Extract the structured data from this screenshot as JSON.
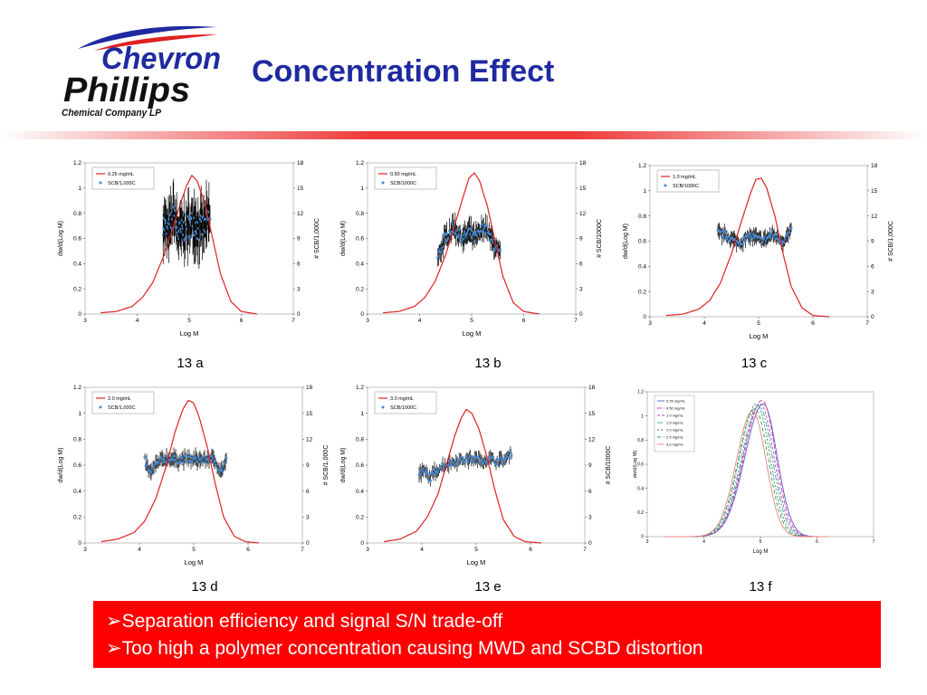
{
  "slide": {
    "title": "Concentration Effect",
    "logo": {
      "line1": "Chevron",
      "line2": "Phillips",
      "line3": "Chemical Company LP"
    },
    "notes": [
      "➢Separation efficiency and signal S/N trade-off",
      "➢Too high a polymer concentration causing MWD and SCBD distortion"
    ],
    "colors": {
      "title": "#1f2aa0",
      "notes_background": "#ff0000",
      "notes_text": "#ffffff",
      "mwd_curve": "#e02020",
      "scb_points": "#4a86c8",
      "error_bars": "#000000"
    }
  },
  "chart_data": [
    {
      "panel_label": "13 a",
      "type": "line",
      "xlabel": "Log M",
      "ylabel": "dw/d(Log M)",
      "y2label": "# SCB/1,000C",
      "xlim": [
        3,
        7
      ],
      "ylim": [
        0,
        1.2
      ],
      "y2lim": [
        0,
        18
      ],
      "xticks": [
        3,
        4,
        5,
        6,
        7
      ],
      "yticks": [
        0,
        0.2,
        0.4,
        0.6,
        0.8,
        1,
        1.2
      ],
      "y2ticks": [
        0,
        3,
        6,
        9,
        12,
        15,
        18
      ],
      "legend": {
        "position": "top-left",
        "entries": [
          "0.25 mg/mL",
          "SCB/1,000C"
        ]
      },
      "series": [
        {
          "name": "0.25 mg/mL",
          "kind": "line",
          "x": [
            3.3,
            3.6,
            3.9,
            4.1,
            4.3,
            4.5,
            4.7,
            4.85,
            4.95,
            5.05,
            5.15,
            5.3,
            5.45,
            5.6,
            5.8,
            6.0,
            6.3
          ],
          "y": [
            0.01,
            0.02,
            0.06,
            0.13,
            0.25,
            0.45,
            0.7,
            0.9,
            1.02,
            1.1,
            1.06,
            0.88,
            0.6,
            0.32,
            0.1,
            0.02,
            0.0
          ]
        },
        {
          "name": "SCB/1,000C",
          "kind": "points",
          "axis": "y2",
          "x": [
            4.5,
            4.6,
            4.7,
            4.8,
            4.9,
            5.0,
            5.1,
            5.2,
            5.3,
            5.4
          ],
          "y": [
            11,
            9.5,
            12,
            9.5,
            10,
            10.5,
            11,
            10,
            10.5,
            11.5
          ],
          "error": 3.5
        }
      ]
    },
    {
      "panel_label": "13 b",
      "type": "line",
      "xlabel": "Log M",
      "ylabel": "dw/d(Log M)",
      "y2label": "# SCB/1000C",
      "xlim": [
        3,
        7
      ],
      "ylim": [
        0,
        1.2
      ],
      "y2lim": [
        0,
        18
      ],
      "xticks": [
        3,
        4,
        5,
        6,
        7
      ],
      "yticks": [
        0,
        0.2,
        0.4,
        0.6,
        0.8,
        1,
        1.2
      ],
      "y2ticks": [
        0,
        3,
        6,
        9,
        12,
        15,
        18
      ],
      "legend": {
        "position": "top-left",
        "entries": [
          "0.50 mg/mL",
          "SCB/1000C"
        ]
      },
      "series": [
        {
          "name": "0.50 mg/mL",
          "kind": "line",
          "x": [
            3.3,
            3.6,
            3.9,
            4.1,
            4.3,
            4.5,
            4.7,
            4.85,
            4.95,
            5.05,
            5.15,
            5.3,
            5.45,
            5.6,
            5.8,
            6.0,
            6.3
          ],
          "y": [
            0.01,
            0.02,
            0.06,
            0.13,
            0.26,
            0.47,
            0.74,
            0.95,
            1.08,
            1.12,
            1.06,
            0.86,
            0.58,
            0.3,
            0.09,
            0.02,
            0.0
          ]
        },
        {
          "name": "SCB/1000C",
          "kind": "points",
          "axis": "y2",
          "x": [
            4.35,
            4.45,
            4.55,
            4.65,
            4.75,
            4.85,
            4.95,
            5.05,
            5.15,
            5.25,
            5.35,
            5.45,
            5.55
          ],
          "y": [
            6.5,
            8.5,
            9.5,
            10.5,
            9.5,
            9.0,
            9.8,
            9.0,
            9.5,
            10.5,
            9.2,
            8.0,
            7.0
          ],
          "error": 1.5
        }
      ]
    },
    {
      "panel_label": "13 c",
      "type": "line",
      "xlabel": "Log M",
      "ylabel": "dw/d(Log M)",
      "y2label": "# SCB/1,000C",
      "xlim": [
        3,
        7
      ],
      "ylim": [
        0,
        1.2
      ],
      "y2lim": [
        0,
        18
      ],
      "xticks": [
        3,
        4,
        5,
        6,
        7
      ],
      "yticks": [
        0,
        0.2,
        0.4,
        0.6,
        0.8,
        1,
        1.2
      ],
      "y2ticks": [
        0,
        3,
        6,
        9,
        12,
        15,
        18
      ],
      "legend": {
        "position": "top-left",
        "entries": [
          "1.0 mg/mL",
          "SCB/1000C"
        ]
      },
      "series": [
        {
          "name": "1.0 mg/mL",
          "kind": "line",
          "x": [
            3.3,
            3.6,
            3.9,
            4.1,
            4.3,
            4.5,
            4.7,
            4.85,
            4.95,
            5.05,
            5.15,
            5.3,
            5.45,
            5.6,
            5.8,
            6.0,
            6.3
          ],
          "y": [
            0.01,
            0.02,
            0.06,
            0.13,
            0.27,
            0.5,
            0.78,
            0.98,
            1.09,
            1.1,
            1.02,
            0.8,
            0.5,
            0.24,
            0.07,
            0.01,
            0.0
          ]
        },
        {
          "name": "SCB/1000C",
          "kind": "points",
          "axis": "y2",
          "x": [
            4.25,
            4.35,
            4.45,
            4.55,
            4.65,
            4.75,
            4.85,
            4.95,
            5.05,
            5.15,
            5.25,
            5.35,
            5.45,
            5.55,
            5.6
          ],
          "y": [
            10.0,
            9.8,
            9.5,
            9.0,
            8.8,
            9.2,
            9.6,
            9.4,
            9.1,
            9.3,
            9.8,
            9.4,
            9.0,
            9.8,
            10.2
          ],
          "error": 1.0
        }
      ]
    },
    {
      "panel_label": "13 d",
      "type": "line",
      "xlabel": "Log M",
      "ylabel": "dw/d(Log M)",
      "y2label": "# SCB/1,000C",
      "xlim": [
        3,
        7
      ],
      "ylim": [
        0,
        1.2
      ],
      "y2lim": [
        0,
        18
      ],
      "xticks": [
        3,
        4,
        5,
        6,
        7
      ],
      "yticks": [
        0,
        0.2,
        0.4,
        0.6,
        0.8,
        1,
        1.2
      ],
      "y2ticks": [
        0,
        3,
        6,
        9,
        12,
        15,
        18
      ],
      "legend": {
        "position": "top-left",
        "entries": [
          "2.0 mg/mL",
          "SCB/1,000C"
        ]
      },
      "series": [
        {
          "name": "2.0 mg/mL",
          "kind": "line",
          "x": [
            3.3,
            3.6,
            3.9,
            4.1,
            4.3,
            4.5,
            4.65,
            4.8,
            4.9,
            5.0,
            5.1,
            5.25,
            5.4,
            5.55,
            5.75,
            5.95,
            6.2
          ],
          "y": [
            0.01,
            0.03,
            0.08,
            0.17,
            0.34,
            0.6,
            0.85,
            1.03,
            1.1,
            1.08,
            0.97,
            0.74,
            0.45,
            0.2,
            0.05,
            0.01,
            0.0
          ]
        },
        {
          "name": "SCB/1,000C",
          "kind": "points",
          "axis": "y2",
          "x": [
            4.1,
            4.2,
            4.3,
            4.4,
            4.5,
            4.6,
            4.7,
            4.8,
            4.9,
            5.0,
            5.1,
            5.2,
            5.3,
            5.4,
            5.5,
            5.6
          ],
          "y": [
            9.5,
            8.0,
            9.0,
            9.5,
            9.8,
            9.7,
            9.6,
            9.7,
            9.7,
            9.6,
            9.7,
            9.6,
            9.8,
            9.5,
            8.2,
            9.5
          ],
          "error": 1.0
        }
      ]
    },
    {
      "panel_label": "13 e",
      "type": "line",
      "xlabel": "Log M",
      "ylabel": "dw/d(Log M)",
      "y2label": "# SCB/1000C",
      "xlim": [
        3,
        7
      ],
      "ylim": [
        0,
        1.2
      ],
      "y2lim": [
        0,
        18
      ],
      "xticks": [
        3,
        4,
        5,
        6,
        7
      ],
      "yticks": [
        0,
        0.2,
        0.4,
        0.6,
        0.8,
        1,
        1.2
      ],
      "y2ticks": [
        0,
        3,
        6,
        9,
        12,
        15,
        18
      ],
      "legend": {
        "position": "top-left",
        "entries": [
          "3.0 mg/mL",
          "SCB/1000C"
        ]
      },
      "series": [
        {
          "name": "3.0 mg/mL",
          "kind": "line",
          "x": [
            3.3,
            3.6,
            3.9,
            4.1,
            4.3,
            4.45,
            4.6,
            4.72,
            4.82,
            4.92,
            5.05,
            5.2,
            5.35,
            5.5,
            5.7,
            5.9,
            6.2
          ],
          "y": [
            0.01,
            0.03,
            0.09,
            0.2,
            0.38,
            0.6,
            0.82,
            0.96,
            1.03,
            1.0,
            0.88,
            0.66,
            0.4,
            0.18,
            0.05,
            0.01,
            0.0
          ]
        },
        {
          "name": "SCB/1000C",
          "kind": "points",
          "axis": "y2",
          "x": [
            3.95,
            4.05,
            4.15,
            4.25,
            4.35,
            4.45,
            4.55,
            4.65,
            4.75,
            4.85,
            4.95,
            5.05,
            5.15,
            5.25,
            5.35,
            5.45,
            5.55,
            5.65
          ],
          "y": [
            8.0,
            8.3,
            7.5,
            8.3,
            8.8,
            9.1,
            9.3,
            9.5,
            9.6,
            9.7,
            9.7,
            9.6,
            9.6,
            9.7,
            9.5,
            9.5,
            9.7,
            10.5
          ],
          "error": 0.9
        }
      ]
    },
    {
      "panel_label": "13 f",
      "type": "line",
      "xlabel": "Log M",
      "ylabel": "dw/d(Log M)",
      "xlim": [
        3,
        7
      ],
      "ylim": [
        0,
        1.2
      ],
      "xticks": [
        3,
        4,
        5,
        6,
        7
      ],
      "yticks": [
        0,
        0.2,
        0.4,
        0.6,
        0.8,
        1,
        1.2
      ],
      "legend": {
        "position": "top-left",
        "entries": [
          "0.25 mg/mL",
          "0.50 mg/mL",
          "1.0 mg/mL",
          "1.5 mg/mL",
          "2.0 mg/mL",
          "2.5 mg/mL",
          "3.0 mg/mL"
        ]
      },
      "series": [
        {
          "name": "0.25 mg/mL",
          "color": "#5a5ad0",
          "dash": "",
          "peak_x": 5.05,
          "peak_y": 1.1,
          "left_width": 0.5,
          "right_width": 0.38
        },
        {
          "name": "0.50 mg/mL",
          "color": "#d04090",
          "dash": "5,2",
          "peak_x": 5.03,
          "peak_y": 1.13,
          "left_width": 0.49,
          "right_width": 0.37
        },
        {
          "name": "1.0 mg/mL",
          "color": "#a050c0",
          "dash": "3,2",
          "peak_x": 5.0,
          "peak_y": 1.1,
          "left_width": 0.48,
          "right_width": 0.37
        },
        {
          "name": "1.5 mg/mL",
          "color": "#40a0a0",
          "dash": "6,2,2,2",
          "peak_x": 4.97,
          "peak_y": 1.09,
          "left_width": 0.47,
          "right_width": 0.37
        },
        {
          "name": "2.0 mg/mL",
          "color": "#2e8b57",
          "dash": "2,2",
          "peak_x": 4.93,
          "peak_y": 1.1,
          "left_width": 0.46,
          "right_width": 0.37
        },
        {
          "name": "2.5 mg/mL",
          "color": "#30a050",
          "dash": "4,3",
          "peak_x": 4.9,
          "peak_y": 1.06,
          "left_width": 0.45,
          "right_width": 0.37
        },
        {
          "name": "3.0 mg/mL",
          "color": "#f08080",
          "dash": "",
          "peak_x": 4.86,
          "peak_y": 1.04,
          "left_width": 0.44,
          "right_width": 0.37
        }
      ]
    }
  ]
}
